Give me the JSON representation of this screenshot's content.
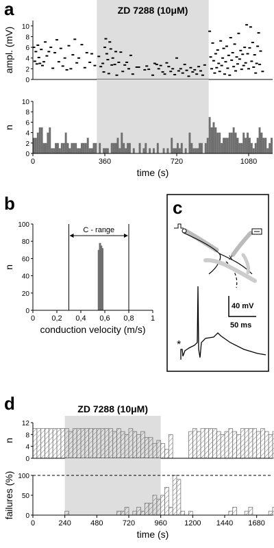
{
  "panels": {
    "a": "a",
    "b": "b",
    "c": "c",
    "d": "d"
  },
  "colors": {
    "shade": "#dedede",
    "bar_dark": "#6f6f6f",
    "bar_hatch": "#9a9a9a"
  },
  "chart_data": [
    {
      "id": "a-top",
      "type": "scatter",
      "ylabel": "ampl. (mV)",
      "xlim": [
        0,
        1200
      ],
      "ylim": [
        0,
        11
      ],
      "yticks": [
        "0",
        "2",
        "4",
        "6",
        "8",
        "10"
      ],
      "drug_window": [
        320,
        880
      ],
      "annotation": "ZD 7288 (10μM)",
      "points": [
        [
          5,
          6.0
        ],
        [
          10,
          3.4
        ],
        [
          15,
          5.2
        ],
        [
          20,
          2.9
        ],
        [
          25,
          6.4
        ],
        [
          30,
          4.1
        ],
        [
          35,
          3.0
        ],
        [
          42,
          5.6
        ],
        [
          48,
          2.6
        ],
        [
          55,
          3.3
        ],
        [
          62,
          7.0
        ],
        [
          70,
          4.4
        ],
        [
          80,
          5.2
        ],
        [
          90,
          6.0
        ],
        [
          100,
          2.1
        ],
        [
          110,
          5.0
        ],
        [
          120,
          7.4
        ],
        [
          130,
          3.3
        ],
        [
          140,
          5.8
        ],
        [
          150,
          2.5
        ],
        [
          160,
          4.0
        ],
        [
          170,
          1.8
        ],
        [
          180,
          6.3
        ],
        [
          190,
          2.0
        ],
        [
          200,
          4.6
        ],
        [
          210,
          7.5
        ],
        [
          220,
          3.1
        ],
        [
          230,
          4.0
        ],
        [
          245,
          6.5
        ],
        [
          260,
          2.2
        ],
        [
          270,
          5.0
        ],
        [
          285,
          3.2
        ],
        [
          295,
          4.8
        ],
        [
          310,
          2.6
        ],
        [
          330,
          4.3
        ],
        [
          340,
          2.4
        ],
        [
          350,
          3.0
        ],
        [
          355,
          1.4
        ],
        [
          360,
          6.0
        ],
        [
          365,
          7.6
        ],
        [
          370,
          4.8
        ],
        [
          375,
          3.7
        ],
        [
          380,
          1.1
        ],
        [
          385,
          7.0
        ],
        [
          390,
          5.7
        ],
        [
          395,
          2.7
        ],
        [
          400,
          4.0
        ],
        [
          410,
          2.8
        ],
        [
          415,
          5.2
        ],
        [
          420,
          0.8
        ],
        [
          430,
          3.2
        ],
        [
          440,
          5.1
        ],
        [
          450,
          1.5
        ],
        [
          460,
          2.7
        ],
        [
          470,
          3.2
        ],
        [
          480,
          2.0
        ],
        [
          490,
          4.5
        ],
        [
          500,
          1.0
        ],
        [
          520,
          2.3
        ],
        [
          530,
          2.3
        ],
        [
          560,
          1.8
        ],
        [
          570,
          2.5
        ],
        [
          580,
          1.9
        ],
        [
          600,
          0.8
        ],
        [
          610,
          3.0
        ],
        [
          620,
          2.8
        ],
        [
          630,
          2.0
        ],
        [
          640,
          2.6
        ],
        [
          650,
          1.4
        ],
        [
          660,
          1.0
        ],
        [
          670,
          3.1
        ],
        [
          680,
          2.4
        ],
        [
          690,
          1.5
        ],
        [
          700,
          2.0
        ],
        [
          710,
          0.9
        ],
        [
          720,
          4.0
        ],
        [
          730,
          1.6
        ],
        [
          740,
          2.0
        ],
        [
          750,
          1.2
        ],
        [
          760,
          2.8
        ],
        [
          770,
          1.7
        ],
        [
          780,
          0.6
        ],
        [
          790,
          2.2
        ],
        [
          800,
          1.4
        ],
        [
          810,
          1.8
        ],
        [
          820,
          1.0
        ],
        [
          830,
          2.4
        ],
        [
          840,
          1.6
        ],
        [
          850,
          0.8
        ],
        [
          860,
          2.7
        ],
        [
          885,
          9.0
        ],
        [
          890,
          4.2
        ],
        [
          895,
          2.0
        ],
        [
          900,
          6.8
        ],
        [
          905,
          3.5
        ],
        [
          910,
          1.2
        ],
        [
          915,
          4.8
        ],
        [
          920,
          2.2
        ],
        [
          925,
          5.5
        ],
        [
          930,
          3.0
        ],
        [
          935,
          1.5
        ],
        [
          940,
          7.2
        ],
        [
          945,
          2.6
        ],
        [
          950,
          4.0
        ],
        [
          955,
          5.8
        ],
        [
          960,
          1.0
        ],
        [
          965,
          3.3
        ],
        [
          970,
          6.2
        ],
        [
          975,
          2.1
        ],
        [
          980,
          4.5
        ],
        [
          985,
          0.8
        ],
        [
          990,
          7.8
        ],
        [
          995,
          3.6
        ],
        [
          1000,
          5.0
        ],
        [
          1005,
          2.4
        ],
        [
          1010,
          6.6
        ],
        [
          1015,
          1.6
        ],
        [
          1020,
          4.2
        ],
        [
          1025,
          2.9
        ],
        [
          1030,
          8.6
        ],
        [
          1035,
          3.8
        ],
        [
          1040,
          5.4
        ],
        [
          1045,
          1.9
        ],
        [
          1050,
          4.7
        ],
        [
          1055,
          2.6
        ],
        [
          1060,
          6.0
        ],
        [
          1065,
          3.1
        ],
        [
          1070,
          10.2
        ],
        [
          1075,
          4.8
        ],
        [
          1080,
          2.0
        ],
        [
          1085,
          5.9
        ],
        [
          1090,
          9.8
        ],
        [
          1095,
          3.4
        ],
        [
          1100,
          6.9
        ],
        [
          1105,
          2.3
        ],
        [
          1110,
          4.6
        ],
        [
          1115,
          1.2
        ],
        [
          1120,
          3.0
        ],
        [
          1125,
          6.2
        ],
        [
          1130,
          8.7
        ],
        [
          1135,
          2.8
        ],
        [
          1140,
          5.3
        ],
        [
          1150,
          1.5
        ]
      ]
    },
    {
      "id": "a-bottom",
      "type": "bar",
      "ylabel": "n",
      "xlabel": "time (s)",
      "xlim": [
        0,
        1200
      ],
      "ylim": [
        0,
        10
      ],
      "yticks": [
        "0",
        "2",
        "4",
        "6",
        "8",
        "10"
      ],
      "xticks": [
        "0",
        "360",
        "720",
        "1080"
      ],
      "drug_window": [
        320,
        880
      ],
      "bin_width": 10,
      "values": [
        3,
        3,
        4,
        5,
        5,
        2,
        2,
        4,
        5,
        1,
        1,
        2,
        2,
        1,
        2,
        2,
        4,
        2,
        1,
        2,
        2,
        2,
        1,
        1,
        2,
        2,
        2,
        3,
        1,
        1,
        2,
        2,
        0,
        2,
        0,
        1,
        1,
        1,
        0,
        2,
        2,
        2,
        3,
        1,
        4,
        2,
        1,
        2,
        2,
        0,
        1,
        0,
        0,
        2,
        0,
        1,
        2,
        0,
        1,
        0,
        1,
        0,
        2,
        0,
        0,
        1,
        0,
        1,
        0,
        3,
        1,
        1,
        2,
        1,
        2,
        0,
        1,
        0,
        4,
        2,
        1,
        1,
        1,
        2,
        2,
        0,
        2,
        3,
        7,
        5,
        6,
        5,
        4,
        4,
        2,
        3,
        3,
        3,
        4,
        4,
        5,
        4,
        3,
        2,
        2,
        4,
        3,
        4,
        3,
        2,
        1,
        2,
        3,
        5,
        4,
        3,
        3,
        1,
        2,
        3
      ]
    },
    {
      "id": "b",
      "type": "bar",
      "ylabel": "n",
      "xlabel": "conduction velocity (m/s)",
      "xlim": [
        0,
        1
      ],
      "ylim": [
        0,
        100
      ],
      "xticks": [
        "0",
        "0,2",
        "0,4",
        "0,6",
        "0,8",
        "1"
      ],
      "yticks": [
        "0",
        "20",
        "40",
        "60",
        "80",
        "100"
      ],
      "c_range": [
        0.3,
        0.8
      ],
      "c_range_label": "C - range",
      "bars": [
        [
          0.55,
          70
        ],
        [
          0.56,
          78
        ],
        [
          0.57,
          75
        ],
        [
          0.58,
          72
        ]
      ]
    },
    {
      "id": "d-top",
      "type": "bar",
      "ylabel": "n",
      "xlim": [
        0,
        1800
      ],
      "ylim": [
        0,
        12
      ],
      "yticks": [
        "0",
        "4",
        "8",
        "12"
      ],
      "drug_window": [
        240,
        960
      ],
      "annotation": "ZD 7288 (10μM)",
      "bin_width": 30,
      "values": [
        10,
        10,
        10,
        10,
        10,
        10,
        10,
        10,
        10,
        9,
        10,
        10,
        10,
        10,
        10,
        10,
        10,
        10,
        10,
        10,
        9,
        10,
        9,
        8,
        10,
        9,
        8,
        9,
        7,
        7,
        5,
        6,
        5,
        3,
        8,
        0,
        0,
        0,
        0,
        9,
        10,
        9,
        10,
        10,
        10,
        10,
        9,
        8,
        9,
        10,
        9,
        8,
        10,
        10,
        10,
        10,
        9,
        10,
        9,
        8,
        9
      ]
    },
    {
      "id": "d-bottom",
      "type": "bar",
      "ylabel": "failures (%)",
      "xlabel": "time (s)",
      "xlim": [
        0,
        1800
      ],
      "ylim": [
        0,
        100
      ],
      "yticks": [
        "0",
        "50",
        "100"
      ],
      "xticks": [
        "0",
        "240",
        "480",
        "720",
        "960",
        "1200",
        "1440",
        "1680"
      ],
      "drug_window": [
        240,
        960
      ],
      "dashed_line": 100,
      "bin_width": 30,
      "values": [
        0,
        0,
        0,
        0,
        0,
        0,
        0,
        0,
        10,
        0,
        0,
        0,
        0,
        0,
        0,
        0,
        0,
        0,
        0,
        0,
        0,
        10,
        10,
        20,
        0,
        10,
        20,
        10,
        30,
        30,
        50,
        40,
        50,
        70,
        20,
        100,
        90,
        10,
        0,
        10,
        0,
        0,
        0,
        0,
        0,
        0,
        0,
        0,
        0,
        10,
        20,
        0,
        0,
        10,
        20,
        0,
        0,
        0,
        0,
        10,
        20
      ]
    },
    {
      "id": "c",
      "type": "diagram",
      "scale_v": "40 mV",
      "scale_t": "50 ms",
      "stim_mark": "*"
    }
  ]
}
